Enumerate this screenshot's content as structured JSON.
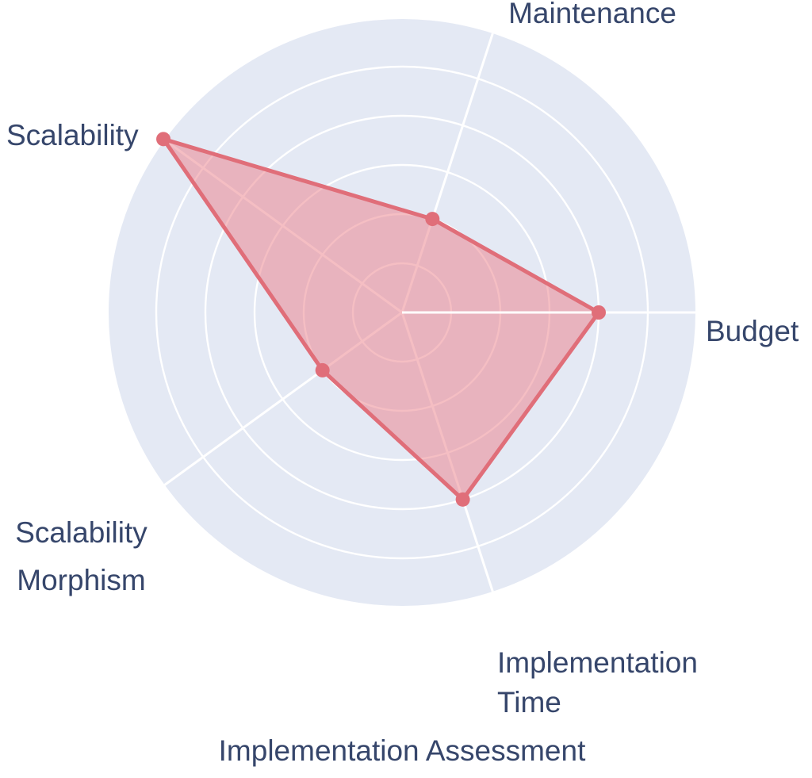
{
  "page": {
    "background_color": "#ffffff"
  },
  "chart_data": {
    "type": "radar",
    "title": "Implementation Assessment",
    "axes": [
      {
        "label": "Budget",
        "angle_deg": 0,
        "value": 4
      },
      {
        "label": "Maintenance",
        "angle_deg": 72,
        "value": 2
      },
      {
        "label": "Scalability",
        "angle_deg": 144,
        "value": 6
      },
      {
        "label": "Scalability Morphism",
        "angle_deg": 216,
        "value": 2
      },
      {
        "label": "Implementation Time",
        "angle_deg": 288,
        "value": 4
      }
    ],
    "scale": {
      "min": 0,
      "max": 6,
      "ring_step": 1,
      "inner_ring_values": [
        1,
        2,
        3,
        4,
        5
      ],
      "tick_labels_visible": false
    },
    "legend": {
      "visible": false
    },
    "style": {
      "disc_color": "#e4e9f4",
      "grid_line_color": "#ffffff",
      "series_stroke_color": "#e06e79",
      "series_fill_color": "rgba(235,130,140,0.52)",
      "point_color": "#e06e79",
      "label_color": "#36466b"
    }
  }
}
